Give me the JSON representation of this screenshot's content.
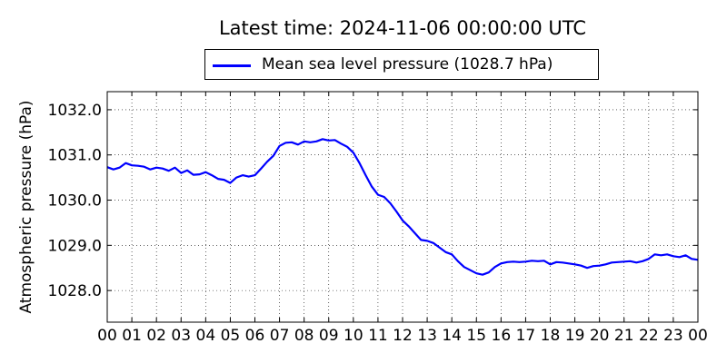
{
  "chart_data": {
    "type": "line",
    "title": "Latest time: 2024-11-06 00:00:00 UTC",
    "xlabel": "",
    "ylabel": "Atmospheric pressure (hPa)",
    "xlim": [
      0,
      24
    ],
    "ylim": [
      1027.3,
      1032.4
    ],
    "x_tick_values": [
      0,
      1,
      2,
      3,
      4,
      5,
      6,
      7,
      8,
      9,
      10,
      11,
      12,
      13,
      14,
      15,
      16,
      17,
      18,
      19,
      20,
      21,
      22,
      23,
      24
    ],
    "x_tick_labels": [
      "00",
      "01",
      "02",
      "03",
      "04",
      "05",
      "06",
      "07",
      "08",
      "09",
      "10",
      "11",
      "12",
      "13",
      "14",
      "15",
      "16",
      "17",
      "18",
      "19",
      "20",
      "21",
      "22",
      "23",
      "00"
    ],
    "y_tick_values": [
      1028.0,
      1029.0,
      1030.0,
      1031.0,
      1032.0
    ],
    "y_tick_labels": [
      "1028.0",
      "1029.0",
      "1030.0",
      "1031.0",
      "1032.0"
    ],
    "grid": true,
    "legend_position": "top-center",
    "series": [
      {
        "name": "Mean sea level pressure (1028.7 hPa)",
        "color": "#0000ff",
        "x": [
          0,
          0.25,
          0.5,
          0.75,
          1,
          1.25,
          1.5,
          1.75,
          2,
          2.25,
          2.5,
          2.75,
          3,
          3.25,
          3.5,
          3.75,
          4,
          4.25,
          4.5,
          4.75,
          5,
          5.25,
          5.5,
          5.75,
          6,
          6.25,
          6.5,
          6.75,
          7,
          7.25,
          7.5,
          7.75,
          8,
          8.25,
          8.5,
          8.75,
          9,
          9.25,
          9.5,
          9.75,
          10,
          10.25,
          10.5,
          10.75,
          11,
          11.25,
          11.5,
          11.75,
          12,
          12.25,
          12.5,
          12.75,
          13,
          13.25,
          13.5,
          13.75,
          14,
          14.25,
          14.5,
          14.75,
          15,
          15.25,
          15.5,
          15.75,
          16,
          16.25,
          16.5,
          16.75,
          17,
          17.25,
          17.5,
          17.75,
          18,
          18.25,
          18.5,
          18.75,
          19,
          19.25,
          19.5,
          19.75,
          20,
          20.25,
          20.5,
          20.75,
          21,
          21.25,
          21.5,
          21.75,
          22,
          22.25,
          22.5,
          22.75,
          23,
          23.25,
          23.5,
          23.75,
          24
        ],
        "y": [
          1030.73,
          1030.68,
          1030.72,
          1030.82,
          1030.77,
          1030.76,
          1030.74,
          1030.68,
          1030.72,
          1030.7,
          1030.65,
          1030.72,
          1030.6,
          1030.66,
          1030.56,
          1030.57,
          1030.62,
          1030.55,
          1030.47,
          1030.45,
          1030.38,
          1030.5,
          1030.55,
          1030.52,
          1030.55,
          1030.7,
          1030.85,
          1030.98,
          1031.2,
          1031.27,
          1031.28,
          1031.23,
          1031.3,
          1031.28,
          1031.3,
          1031.35,
          1031.32,
          1031.33,
          1031.25,
          1031.18,
          1031.05,
          1030.82,
          1030.55,
          1030.3,
          1030.12,
          1030.07,
          1029.93,
          1029.75,
          1029.55,
          1029.42,
          1029.27,
          1029.12,
          1029.1,
          1029.05,
          1028.95,
          1028.85,
          1028.8,
          1028.65,
          1028.52,
          1028.45,
          1028.38,
          1028.35,
          1028.4,
          1028.52,
          1028.6,
          1028.63,
          1028.64,
          1028.63,
          1028.64,
          1028.66,
          1028.65,
          1028.66,
          1028.58,
          1028.63,
          1028.62,
          1028.6,
          1028.58,
          1028.55,
          1028.5,
          1028.54,
          1028.55,
          1028.58,
          1028.62,
          1028.63,
          1028.64,
          1028.65,
          1028.62,
          1028.65,
          1028.7,
          1028.8,
          1028.78,
          1028.8,
          1028.76,
          1028.74,
          1028.78,
          1028.7,
          1028.68
        ]
      }
    ]
  }
}
